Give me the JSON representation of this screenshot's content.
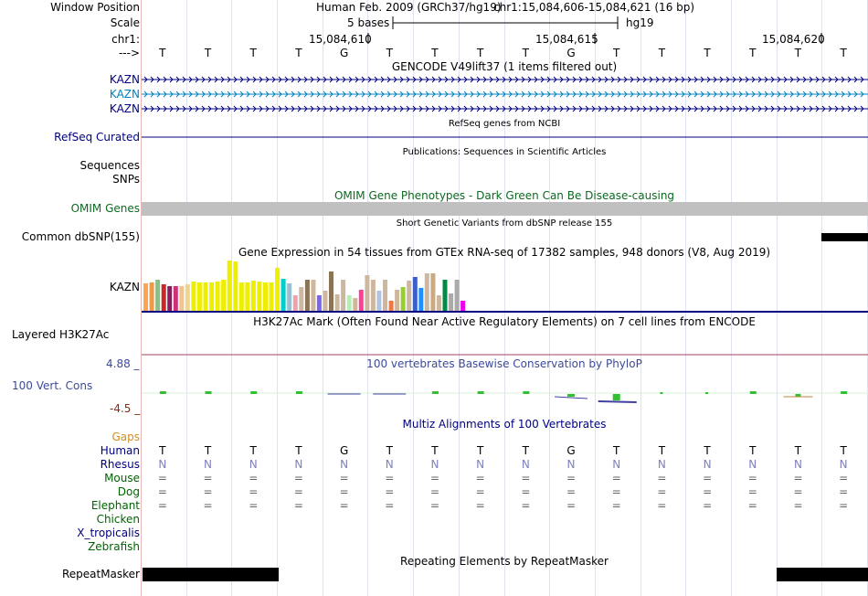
{
  "header": {
    "window_position_label": "Window Position",
    "assembly": "Human Feb. 2009 (GRCh37/hg19)",
    "coords": "chr1:15,084,606-15,084,621 (16 bp)",
    "scale_label": "Scale",
    "scale_text": "5 bases",
    "scale_db": "hg19",
    "chrom_label": "chr1:",
    "ticks": [
      "15,084,610",
      "15,084,615",
      "15,084,620"
    ],
    "strand_label": "--->",
    "bases": [
      "T",
      "T",
      "T",
      "T",
      "G",
      "T",
      "T",
      "T",
      "T",
      "G",
      "T",
      "T",
      "T",
      "T",
      "T",
      "T"
    ]
  },
  "tracks": {
    "gencode": {
      "title": "GENCODE V49lift37 (1 items filtered out)",
      "genes": [
        "KAZN",
        "KAZN",
        "KAZN"
      ],
      "colors": [
        "#000080",
        "#0080c0",
        "#000080"
      ]
    },
    "refseq": {
      "title": "RefSeq genes from NCBI",
      "label": "RefSeq Curated",
      "color": "#000080"
    },
    "publications": {
      "title": "Publications: Sequences in Scientific Articles",
      "labels": [
        "Sequences",
        "SNPs"
      ]
    },
    "omim": {
      "title": "OMIM Gene Phenotypes - Dark Green Can Be Disease-causing",
      "label": "OMIM Genes"
    },
    "dbsnp": {
      "title": "Short Genetic Variants from dbSNP release 155",
      "label": "Common dbSNP(155)"
    },
    "gtex": {
      "title": "Gene Expression in 54 tissues from GTEx RNA-seq of 17382 samples, 948 donors (V8, Aug 2019)",
      "label": "KAZN",
      "values": [
        0.52,
        0.55,
        0.6,
        0.5,
        0.47,
        0.47,
        0.48,
        0.5,
        0.56,
        0.55,
        0.55,
        0.55,
        0.57,
        0.6,
        0.97,
        0.95,
        0.55,
        0.55,
        0.58,
        0.57,
        0.55,
        0.55,
        0.82,
        0.62,
        0.53,
        0.3,
        0.45,
        0.6,
        0.6,
        0.3,
        0.38,
        0.76,
        0.32,
        0.6,
        0.3,
        0.25,
        0.4,
        0.68,
        0.6,
        0.38,
        0.6,
        0.2,
        0.4,
        0.45,
        0.58,
        0.65,
        0.43,
        0.72,
        0.72,
        0.3,
        0.6,
        0.33,
        0.6,
        0.2
      ],
      "colors": [
        "#ffa54f",
        "#ee9a49",
        "#8fbc8f",
        "#cd2626",
        "#8b1c62",
        "#cd3278",
        "#eec591",
        "#eed58b",
        "#eeee00",
        "#eeee00",
        "#eeee00",
        "#eeee00",
        "#eeee00",
        "#eeee00",
        "#eeee00",
        "#eeee00",
        "#eeee00",
        "#eeee00",
        "#eeee00",
        "#eeee00",
        "#eeee00",
        "#eeee00",
        "#eeee00",
        "#00cdcd",
        "#9ac0cd",
        "#eea2ad",
        "#cdb79e",
        "#8b7355",
        "#cdb79e",
        "#7a67ee",
        "#cdb79e",
        "#8b7355",
        "#cdb79e",
        "#cdb79e",
        "#b4eeb4",
        "#cdb79e",
        "#ff3e96",
        "#cdb79e",
        "#cdb79e",
        "#b0c4de",
        "#cdb79e",
        "#ee7942",
        "#cdb79e",
        "#9acd32",
        "#cdb79e",
        "#3a5fcd",
        "#1e90ff",
        "#cdb79e",
        "#cdaa7d",
        "#cdb79e",
        "#008b45",
        "#aaaaaa",
        "#aaaaaa",
        "#ee00ee"
      ]
    },
    "h3k27ac": {
      "title": "H3K27Ac Mark (Often Found Near Active Regulatory Elements) on 7 cell lines from ENCODE",
      "label": "Layered H3K27Ac"
    },
    "phylop": {
      "title": "100 vertebrates Basewise Conservation by PhyloP",
      "label": "100 Vert. Cons",
      "max": "4.88 _",
      "min": "-4.5 _"
    },
    "multiz": {
      "title": "Multiz Alignments of 100 Vertebrates",
      "gaps_label": "Gaps",
      "species": [
        {
          "name": "Human",
          "bases": [
            "T",
            "T",
            "T",
            "T",
            "G",
            "T",
            "T",
            "T",
            "T",
            "G",
            "T",
            "T",
            "T",
            "T",
            "T",
            "T"
          ],
          "color": "#000080",
          "text_color": "#000000"
        },
        {
          "name": "Rhesus",
          "bases": [
            "N",
            "N",
            "N",
            "N",
            "N",
            "N",
            "N",
            "N",
            "N",
            "N",
            "N",
            "N",
            "N",
            "N",
            "N",
            "N"
          ],
          "color": "#000080",
          "text_color": "#7f7fbf"
        },
        {
          "name": "Mouse",
          "bases": [
            "=",
            "=",
            "=",
            "=",
            "=",
            "=",
            "=",
            "=",
            "=",
            "=",
            "=",
            "=",
            "=",
            "=",
            "=",
            "="
          ],
          "color": "#006400",
          "text_color": "#666666"
        },
        {
          "name": "Dog",
          "bases": [
            "=",
            "=",
            "=",
            "=",
            "=",
            "=",
            "=",
            "=",
            "=",
            "=",
            "=",
            "=",
            "=",
            "=",
            "=",
            "="
          ],
          "color": "#006400",
          "text_color": "#666666"
        },
        {
          "name": "Elephant",
          "bases": [
            "=",
            "=",
            "=",
            "=",
            "=",
            "=",
            "=",
            "=",
            "=",
            "=",
            "=",
            "=",
            "=",
            "=",
            "=",
            "="
          ],
          "color": "#006400",
          "text_color": "#666666"
        },
        {
          "name": "Chicken",
          "bases": [],
          "color": "#006400",
          "text_color": "#666666"
        },
        {
          "name": "X_tropicalis",
          "bases": [],
          "color": "#000080",
          "text_color": "#666666"
        },
        {
          "name": "Zebrafish",
          "bases": [],
          "color": "#006400",
          "text_color": "#666666"
        }
      ]
    },
    "repeatmasker": {
      "title": "Repeating Elements by RepeatMasker",
      "label": "RepeatMasker"
    }
  }
}
